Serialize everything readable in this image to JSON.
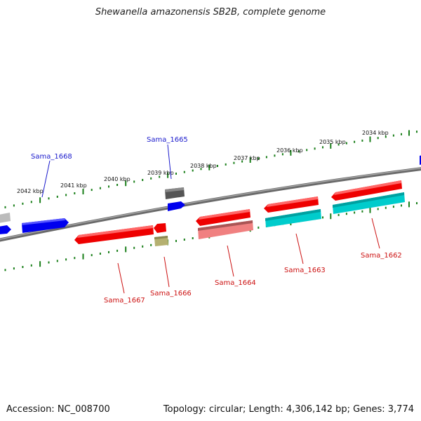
{
  "title": "Shewanella amazonensis SB2B, complete genome",
  "footer": {
    "accession": "Accession: NC_008700",
    "topology": "Topology: circular; Length: 4,306,142 bp; Genes: 3,774"
  },
  "colors": {
    "backbone": "#7a7a7a",
    "tick": "#1a7f1a",
    "forward_label": "#1a1acc",
    "reverse_label": "#cc1111",
    "red_gene": "#ff0000",
    "blue_gene": "#0000ee",
    "cyan_gene": "#00cccc",
    "pink_gene": "#f08080",
    "dark_gene": "#555555",
    "olive_gene": "#b5b070",
    "grey_gene": "#bbbbbb"
  },
  "scale_labels": [
    "2042 kbp",
    "2041 kbp",
    "2040 kbp",
    "2039 kbp",
    "2038 kbp",
    "2037 kbp",
    "2036 kbp",
    "2035 kbp",
    "2034 kbp"
  ],
  "gene_labels": [
    {
      "name": "Sama_1668",
      "strand": "forward"
    },
    {
      "name": "Sama_1665",
      "strand": "forward"
    },
    {
      "name": "Sama_1667",
      "strand": "reverse"
    },
    {
      "name": "Sama_1666",
      "strand": "reverse"
    },
    {
      "name": "Sama_1664",
      "strand": "reverse"
    },
    {
      "name": "Sama_1663",
      "strand": "reverse"
    },
    {
      "name": "Sama_1662",
      "strand": "reverse"
    }
  ]
}
